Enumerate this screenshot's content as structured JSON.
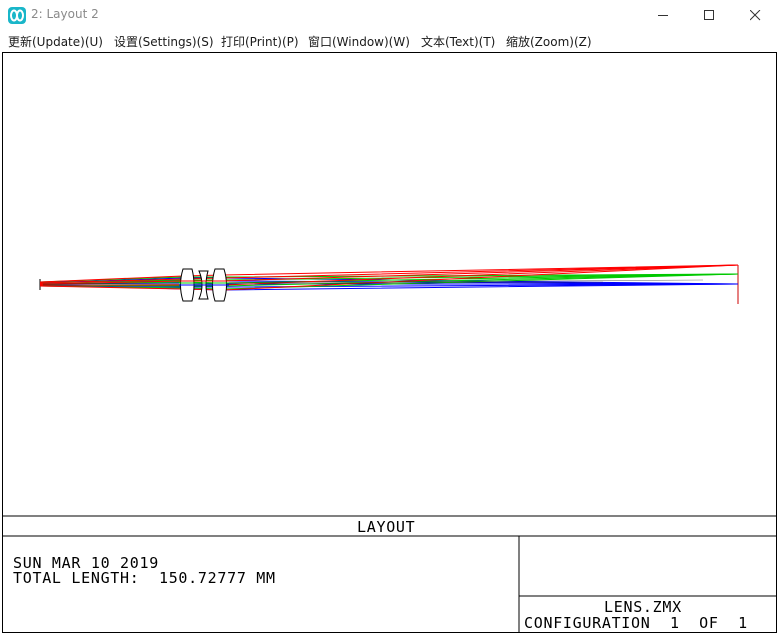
{
  "window": {
    "title": "2: Layout 2",
    "app_icon": "zemax-icon",
    "controls": [
      "minimize-icon",
      "maximize-icon",
      "close-icon"
    ]
  },
  "menu": [
    {
      "label": "更新(Update)(U)"
    },
    {
      "label": "设置(Settings)(S)"
    },
    {
      "label": "打印(Print)(P)"
    },
    {
      "label": "窗口(Window)(W)"
    },
    {
      "label": "文本(Text)(T)"
    },
    {
      "label": "缩放(Zoom)(Z)"
    }
  ],
  "plot": {
    "title": "LAYOUT",
    "date": "SUN MAR 10 2019",
    "total_length_label": "TOTAL LENGTH:",
    "total_length_value": "150.72777",
    "total_length_unit": "MM",
    "file_name": "LENS.ZMX",
    "configuration": "CONFIGURATION  1  OF  1",
    "ray_colors": {
      "field_1": "#0000ff",
      "field_2": "#00c800",
      "field_3": "#ff0000"
    }
  }
}
